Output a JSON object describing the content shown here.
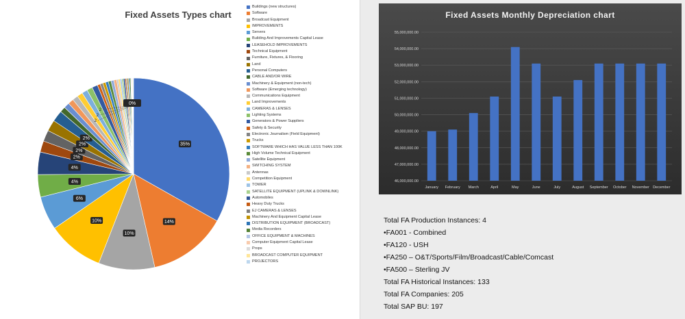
{
  "chart_data": [
    {
      "type": "pie",
      "title": "Fixed Assets Types chart",
      "categories": [
        "Buildings (new structures)",
        "Software",
        "Broadcast Equipment",
        "IMPROVEMENTS",
        "Servers",
        "Building And Improvements Capital Lease",
        "LEASEHOLD IMPROVEMENTS",
        "Technical Equipment",
        "Furniture, Fixtures, & Flooring",
        "Land",
        "Personal Computers",
        "CABLE AND/OR WIRE",
        "Machinery & Equipment (non-tech)",
        "Software (Emerging technology)",
        "Communications Equipment",
        "Land Improvements",
        "CAMERAS & LENSES",
        "Lighting Systems",
        "Generators & Power Suppliers",
        "Safety & Security",
        "Electronic Journalism (Field Equipment)",
        "Trucks",
        "SOFTWARE WHICH HAS VALUE LESS THAN 100K",
        "High Volume Technical Equipment",
        "Satellite Equipment",
        "SWITCHING SYSTEM",
        "Antennas",
        "Competition Equipment",
        "TOWER",
        "SATELLITE EQUIPMENT (UPLINK & DOWNLINK)",
        "Automobiles",
        "Heavy Duty Trucks",
        "EJ CAMERAS & LENSES",
        "Machinery And Equipment Capital Lease",
        "DISTRIBUTION EQUIPMENT (BROADCAST)",
        "Media Recorders",
        "OFFICE EQUIPMENT & MACHINES",
        "Computer Equipment Capital Lease",
        "Props",
        "BROADCAST COMPUTER EQUIPMENT",
        "PROJECTORS"
      ],
      "values": [
        35,
        14,
        10,
        10,
        6,
        4,
        4,
        2,
        2,
        2,
        2,
        1,
        1,
        1,
        1,
        1,
        1,
        1,
        1,
        0.5,
        0.5,
        0.5,
        0.5,
        0.5,
        0.5,
        0.5,
        0.3,
        0.3,
        0.3,
        0.3,
        0.3,
        0.2,
        0.2,
        0.2,
        0.2,
        0.2,
        0.1,
        0.1,
        0.1,
        0.1,
        0.1
      ],
      "value_labels": [
        "35%",
        "14%",
        "10%",
        "10%",
        "6%",
        "4%",
        "4%",
        "2%",
        "2%",
        "2%",
        "2%",
        "",
        "",
        "",
        "",
        "",
        "",
        "",
        "",
        "",
        "",
        "",
        "",
        "",
        "",
        "",
        "",
        "",
        "",
        "",
        "",
        "",
        "",
        "",
        "",
        "",
        "",
        "",
        "",
        "",
        ""
      ],
      "extra_labels": [
        "2",
        "0%"
      ],
      "colors": [
        "#4472c4",
        "#ed7d31",
        "#a5a5a5",
        "#ffc000",
        "#5b9bd5",
        "#70ad47",
        "#264478",
        "#9e480e",
        "#636363",
        "#997300",
        "#255e91",
        "#43682b",
        "#698ed0",
        "#f1975a",
        "#b7b7b7",
        "#ffcd33",
        "#7cafdd",
        "#8cc168",
        "#335aa1",
        "#d26012",
        "#848484",
        "#cc9a00",
        "#327dc2",
        "#5a8a39",
        "#8faadc",
        "#f4b183",
        "#c9c9c9",
        "#ffd966",
        "#9dc3e6",
        "#a9d18e",
        "#2f5597",
        "#c55a11",
        "#7f7f7f",
        "#bf9000",
        "#2e75b6",
        "#548235",
        "#b4c7e7",
        "#f8cbad",
        "#dbdbdb",
        "#ffe699",
        "#bdd7ee"
      ],
      "legend_position": "right"
    },
    {
      "type": "bar",
      "title": "Fixed Assets Monthly Depreciation chart",
      "categories": [
        "January",
        "February",
        "March",
        "April",
        "May",
        "June",
        "July",
        "August",
        "September",
        "October",
        "November",
        "December"
      ],
      "values": [
        49000000,
        49100000,
        50100000,
        51100000,
        54100000,
        53100000,
        51100000,
        52100000,
        53100000,
        53100000,
        53100000,
        53100000
      ],
      "ylim": [
        46000000,
        55000000
      ],
      "yticks": [
        "46,000,000.00",
        "47,000,000.00",
        "48,000,000.00",
        "49,000,000.00",
        "50,000,000.00",
        "51,000,000.00",
        "52,000,000.00",
        "53,000,000.00",
        "54,000,000.00",
        "55,000,000.00"
      ],
      "grid": true,
      "bar_color": "#4472c4"
    }
  ],
  "stats": {
    "production_instances": "Total FA Production Instances: 4",
    "fa001": "•FA001 - Combined",
    "fa120": "•FA120 - USH",
    "fa250": "•FA250 – O&T/Sports/Film/Broadcast/Cable/Comcast",
    "fa500": "•FA500 – Sterling JV",
    "historical_instances": "Total FA Historical Instances: 133",
    "companies": "Total FA Companies: 205",
    "sap_bu": "Total SAP BU: 197"
  }
}
